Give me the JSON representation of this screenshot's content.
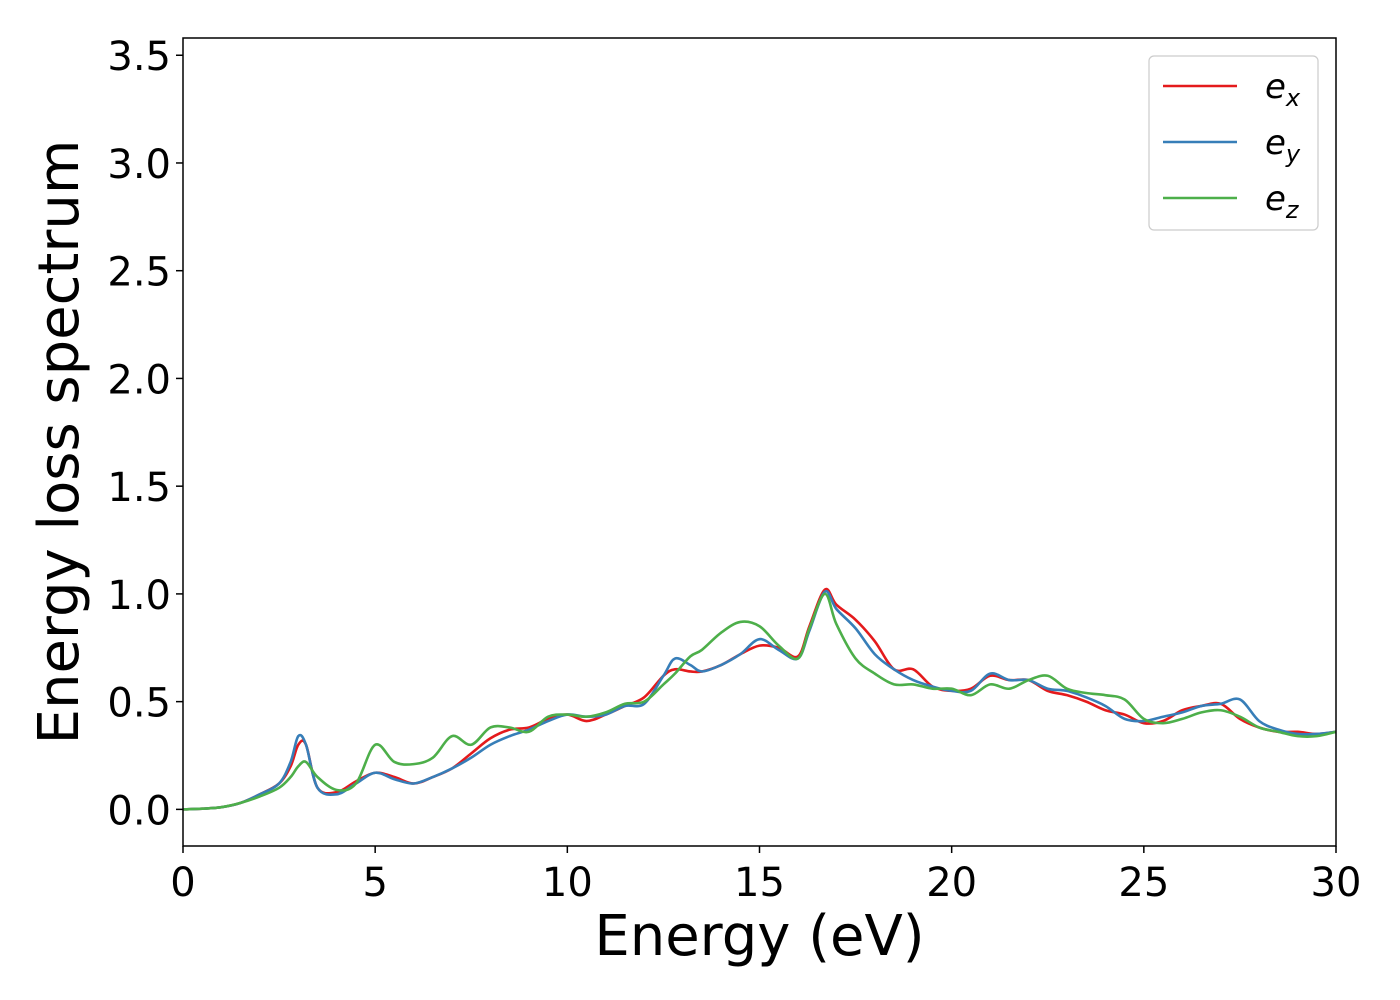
{
  "chart_data": {
    "type": "line",
    "title": "",
    "xlabel": "Energy (eV)",
    "ylabel": "Energy loss spectrum",
    "xlim": [
      0,
      30
    ],
    "ylim": [
      -0.17,
      3.58
    ],
    "x_ticks": [
      "0",
      "5",
      "10",
      "15",
      "20",
      "25",
      "30"
    ],
    "y_ticks": [
      "0.0",
      "0.5",
      "1.0",
      "1.5",
      "2.0",
      "2.5",
      "3.0",
      "3.5"
    ],
    "x_tick_values": [
      0,
      5,
      10,
      15,
      20,
      25,
      30
    ],
    "y_tick_values": [
      0,
      0.5,
      1.0,
      1.5,
      2.0,
      2.5,
      3.0,
      3.5
    ],
    "grid": false,
    "legend_position": "top-right",
    "series": [
      {
        "name": "e_x",
        "label_base": "e",
        "label_sub": "x",
        "color": "#e41a1c",
        "x": [
          0,
          0.5,
          1,
          1.5,
          2,
          2.5,
          2.8,
          3.0,
          3.2,
          3.5,
          4,
          4.5,
          5,
          5.5,
          6,
          6.5,
          7,
          7.5,
          8,
          8.5,
          9,
          9.5,
          10,
          10.5,
          11,
          11.5,
          12,
          12.5,
          12.8,
          13.2,
          13.5,
          14,
          14.5,
          15,
          15.5,
          16,
          16.3,
          16.7,
          17,
          17.5,
          18,
          18.5,
          19,
          19.5,
          20,
          20.5,
          21,
          21.5,
          22,
          22.5,
          23,
          23.5,
          24,
          24.5,
          25,
          25.5,
          26,
          26.5,
          27,
          27.5,
          28,
          28.5,
          29,
          29.5,
          30
        ],
        "y": [
          0,
          0.003,
          0.01,
          0.03,
          0.07,
          0.12,
          0.2,
          0.3,
          0.3,
          0.1,
          0.08,
          0.13,
          0.17,
          0.15,
          0.12,
          0.15,
          0.19,
          0.26,
          0.33,
          0.37,
          0.38,
          0.42,
          0.44,
          0.41,
          0.44,
          0.48,
          0.52,
          0.62,
          0.65,
          0.64,
          0.64,
          0.67,
          0.72,
          0.76,
          0.75,
          0.71,
          0.85,
          1.02,
          0.95,
          0.88,
          0.78,
          0.65,
          0.65,
          0.57,
          0.55,
          0.56,
          0.62,
          0.6,
          0.6,
          0.55,
          0.53,
          0.5,
          0.46,
          0.44,
          0.4,
          0.41,
          0.46,
          0.48,
          0.49,
          0.42,
          0.38,
          0.36,
          0.36,
          0.35,
          0.36
        ]
      },
      {
        "name": "e_y",
        "label_base": "e",
        "label_sub": "y",
        "color": "#377eb8",
        "x": [
          0,
          0.5,
          1,
          1.5,
          2,
          2.5,
          2.8,
          3.0,
          3.2,
          3.5,
          4,
          4.5,
          5,
          5.5,
          6,
          6.5,
          7,
          7.5,
          8,
          8.5,
          9,
          9.5,
          10,
          10.5,
          11,
          11.5,
          12,
          12.5,
          12.8,
          13.2,
          13.5,
          14,
          14.5,
          15,
          15.5,
          16,
          16.3,
          16.7,
          17,
          17.5,
          18,
          18.5,
          19,
          19.5,
          20,
          20.5,
          21,
          21.5,
          22,
          22.5,
          23,
          23.5,
          24,
          24.5,
          25,
          25.5,
          26,
          26.5,
          27,
          27.5,
          28,
          28.5,
          29,
          29.5,
          30
        ],
        "y": [
          0,
          0.003,
          0.01,
          0.03,
          0.07,
          0.12,
          0.22,
          0.34,
          0.3,
          0.1,
          0.07,
          0.12,
          0.17,
          0.14,
          0.12,
          0.15,
          0.19,
          0.24,
          0.3,
          0.34,
          0.37,
          0.41,
          0.44,
          0.43,
          0.44,
          0.48,
          0.49,
          0.62,
          0.7,
          0.67,
          0.64,
          0.67,
          0.72,
          0.79,
          0.74,
          0.7,
          0.83,
          1.01,
          0.93,
          0.84,
          0.72,
          0.65,
          0.6,
          0.57,
          0.55,
          0.55,
          0.63,
          0.6,
          0.6,
          0.56,
          0.55,
          0.52,
          0.48,
          0.42,
          0.41,
          0.43,
          0.45,
          0.48,
          0.49,
          0.51,
          0.41,
          0.37,
          0.35,
          0.35,
          0.36
        ]
      },
      {
        "name": "e_z",
        "label_base": "e",
        "label_sub": "z",
        "color": "#4daf4a",
        "x": [
          0,
          0.5,
          1,
          1.5,
          2,
          2.5,
          2.8,
          3.0,
          3.2,
          3.5,
          4,
          4.5,
          5,
          5.5,
          6,
          6.5,
          7,
          7.5,
          8,
          8.5,
          9,
          9.5,
          10,
          10.5,
          11,
          11.5,
          12,
          12.5,
          12.8,
          13.2,
          13.5,
          14,
          14.5,
          15,
          15.5,
          16,
          16.3,
          16.7,
          17,
          17.5,
          18,
          18.5,
          19,
          19.5,
          20,
          20.5,
          21,
          21.5,
          22,
          22.5,
          23,
          23.5,
          24,
          24.5,
          25,
          25.5,
          26,
          26.5,
          27,
          27.5,
          28,
          28.5,
          29,
          29.5,
          30
        ],
        "y": [
          0,
          0.003,
          0.01,
          0.03,
          0.06,
          0.1,
          0.15,
          0.2,
          0.22,
          0.15,
          0.09,
          0.12,
          0.3,
          0.22,
          0.21,
          0.24,
          0.34,
          0.3,
          0.38,
          0.38,
          0.36,
          0.43,
          0.44,
          0.43,
          0.45,
          0.49,
          0.5,
          0.58,
          0.63,
          0.71,
          0.74,
          0.82,
          0.87,
          0.85,
          0.76,
          0.7,
          0.84,
          1.0,
          0.86,
          0.7,
          0.63,
          0.58,
          0.58,
          0.56,
          0.56,
          0.53,
          0.58,
          0.56,
          0.6,
          0.62,
          0.56,
          0.54,
          0.53,
          0.51,
          0.42,
          0.4,
          0.42,
          0.45,
          0.46,
          0.43,
          0.38,
          0.36,
          0.34,
          0.34,
          0.36
        ]
      }
    ]
  }
}
